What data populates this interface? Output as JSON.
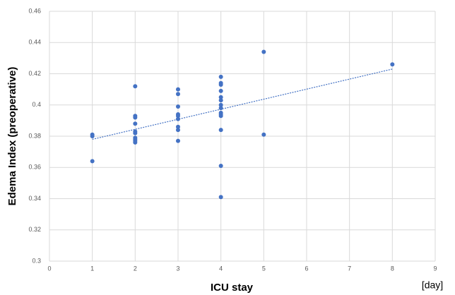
{
  "chart_data": {
    "type": "scatter",
    "x_label": "ICU stay",
    "x_unit": "[day]",
    "y_label": "Edema Index (preoperative)",
    "x": [
      1,
      1,
      1,
      2,
      2,
      2,
      2,
      2,
      2,
      2,
      2,
      2,
      2,
      3,
      3,
      3,
      3,
      3,
      3,
      3,
      3,
      3,
      4,
      4,
      4,
      4,
      4,
      4,
      4,
      4,
      4,
      4,
      4,
      4,
      4,
      4,
      5,
      5,
      8
    ],
    "values": [
      0.381,
      0.38,
      0.364,
      0.412,
      0.393,
      0.392,
      0.388,
      0.383,
      0.382,
      0.379,
      0.378,
      0.377,
      0.376,
      0.41,
      0.407,
      0.399,
      0.394,
      0.393,
      0.391,
      0.386,
      0.384,
      0.377,
      0.418,
      0.414,
      0.413,
      0.409,
      0.405,
      0.403,
      0.4,
      0.398,
      0.395,
      0.394,
      0.393,
      0.384,
      0.361,
      0.341,
      0.434,
      0.381,
      0.426
    ],
    "color": "#4472c4",
    "trendline": {
      "x": [
        1,
        8
      ],
      "values": [
        0.378,
        0.423
      ],
      "color": "#4472c4"
    },
    "xlim": [
      0,
      9
    ],
    "xticks": [
      0,
      1,
      2,
      3,
      4,
      5,
      6,
      7,
      8,
      9
    ],
    "ylim": [
      0.3,
      0.46
    ],
    "yticks": [
      0.3,
      0.32,
      0.34,
      0.36,
      0.38,
      0.4,
      0.42,
      0.44,
      0.46
    ],
    "grid": true
  }
}
